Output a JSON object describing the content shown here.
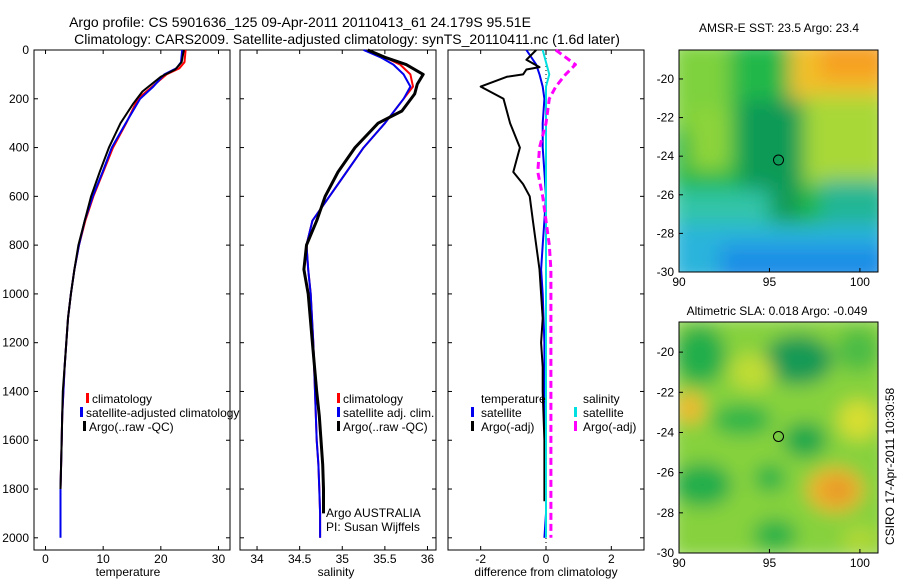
{
  "title": {
    "line1": "Argo profile: CS 5901636_125 09-Apr-2011 20110413_61 24.179S 95.51E",
    "line2": "Climatology: CARS2009. Satellite-adjusted climatology: synTS_20110411.nc (1.6d later)"
  },
  "credit": "CSIRO 17-Apr-2011 10:30:58",
  "colors": {
    "red": "#ff0000",
    "blue": "#0000ee",
    "black": "#000000",
    "cyan": "#00e0e0",
    "magenta": "#ff00ff"
  },
  "chart_data": [
    {
      "id": "temperature",
      "type": "line",
      "xlabel": "temperature",
      "xlim": [
        -2,
        32
      ],
      "ylim": [
        2050,
        0
      ],
      "xticks": [
        0,
        10,
        20,
        30
      ],
      "yticks": [
        0,
        200,
        400,
        600,
        800,
        1000,
        1200,
        1400,
        1600,
        1800,
        2000
      ],
      "legend": [
        "climatology",
        "satellite-adjusted climatology",
        "Argo(..raw -QC)"
      ],
      "series": [
        {
          "name": "climatology",
          "color": "red",
          "width": 2,
          "dash": "",
          "x": [
            24.3,
            24.1,
            23.2,
            21,
            18.5,
            16,
            14,
            11.7,
            10,
            8.3,
            6.9,
            5.8,
            5,
            4.4,
            3.9,
            3.6,
            3.3,
            3.1,
            2.9,
            2.8,
            2.7,
            2.6,
            2.6
          ],
          "y": [
            0,
            50,
            75,
            100,
            150,
            200,
            300,
            400,
            500,
            600,
            700,
            800,
            900,
            1000,
            1100,
            1200,
            1300,
            1400,
            1500,
            1600,
            1700,
            1800,
            1950
          ]
        },
        {
          "name": "satellite-adjusted climatology",
          "color": "blue",
          "width": 2,
          "dash": "",
          "x": [
            23.7,
            23.5,
            22.7,
            20.6,
            18.7,
            16.4,
            13.9,
            11.5,
            9.9,
            8.2,
            6.8,
            5.8,
            5,
            4.4,
            3.9,
            3.6,
            3.3,
            3.1,
            2.9,
            2.8,
            2.7,
            2.6,
            2.6
          ],
          "y": [
            0,
            50,
            75,
            100,
            150,
            200,
            300,
            400,
            500,
            600,
            700,
            800,
            900,
            1000,
            1100,
            1200,
            1300,
            1400,
            1500,
            1600,
            1700,
            1800,
            2000
          ]
        },
        {
          "name": "Argo(..raw -QC)",
          "color": "black",
          "width": 2,
          "dash": "",
          "x": [
            24,
            23.6,
            22.5,
            20,
            16.8,
            15.2,
            13,
            11,
            9.4,
            7.9,
            6.8,
            5.7,
            5,
            4.4,
            3.9,
            3.6,
            3.3,
            3,
            2.9,
            2.8,
            2.7,
            2.6
          ],
          "y": [
            0,
            50,
            80,
            110,
            170,
            220,
            300,
            400,
            500,
            600,
            700,
            800,
            900,
            1000,
            1100,
            1200,
            1300,
            1400,
            1500,
            1600,
            1700,
            1800
          ]
        }
      ]
    },
    {
      "id": "salinity",
      "type": "line",
      "xlabel": "salinity",
      "xlim": [
        33.8,
        36.1
      ],
      "ylim": [
        2050,
        0
      ],
      "xticks": [
        34,
        34.5,
        35,
        35.5,
        36
      ],
      "legend": [
        "climatology",
        "satellite adj. clim.",
        "Argo(..raw -QC)"
      ],
      "annotations": [
        "Argo AUSTRALIA",
        "PI: Susan Wijffels"
      ],
      "series": [
        {
          "name": "climatology",
          "color": "red",
          "width": 2,
          "dash": "",
          "x": [
            35.3,
            35.5,
            35.68,
            35.8,
            35.83,
            35.72,
            35.5,
            35.25,
            35.05,
            34.85,
            34.65,
            34.58,
            34.6,
            34.63,
            34.66,
            34.68,
            34.7,
            34.72,
            34.73,
            34.74,
            34.74
          ],
          "y": [
            0,
            30,
            60,
            100,
            150,
            200,
            300,
            400,
            500,
            600,
            700,
            800,
            900,
            1000,
            1200,
            1400,
            1600,
            1700,
            1800,
            1900,
            2000
          ]
        },
        {
          "name": "satellite adj. clim.",
          "color": "blue",
          "width": 2,
          "dash": "",
          "x": [
            35.25,
            35.45,
            35.6,
            35.72,
            35.8,
            35.72,
            35.5,
            35.25,
            35.05,
            34.85,
            34.65,
            34.58,
            34.6,
            34.63,
            34.66,
            34.68,
            34.7,
            34.72,
            34.73,
            34.74,
            34.74
          ],
          "y": [
            0,
            30,
            60,
            100,
            150,
            200,
            300,
            400,
            500,
            600,
            700,
            800,
            900,
            1000,
            1200,
            1400,
            1600,
            1700,
            1800,
            1900,
            2000
          ]
        },
        {
          "name": "Argo(..raw -QC)",
          "color": "black",
          "width": 3,
          "dash": "",
          "x": [
            35.3,
            35.5,
            35.75,
            35.95,
            35.88,
            35.85,
            35.7,
            35.42,
            35.15,
            34.95,
            34.8,
            34.7,
            34.58,
            34.55,
            34.6,
            34.65,
            34.7,
            34.73,
            34.75,
            34.77,
            34.78,
            34.78
          ],
          "y": [
            0,
            30,
            60,
            100,
            140,
            180,
            250,
            300,
            400,
            500,
            600,
            700,
            800,
            900,
            1000,
            1200,
            1400,
            1500,
            1600,
            1700,
            1800,
            1900
          ]
        }
      ]
    },
    {
      "id": "difference",
      "type": "line",
      "xlabel": "difference from climatology",
      "xlim": [
        -3,
        3
      ],
      "ylim": [
        2050,
        0
      ],
      "xticks": [
        -2,
        0,
        2
      ],
      "legend_temperature": {
        "title": "temperature",
        "items": [
          "satellite",
          "Argo(-adj)"
        ]
      },
      "legend_salinity": {
        "title": "salinity",
        "items": [
          "satellite",
          "Argo(-adj)"
        ]
      },
      "series": [
        {
          "name": "temperature satellite",
          "color": "blue",
          "width": 2,
          "dash": "",
          "x": [
            -0.6,
            -0.3,
            -0.2,
            -0.1,
            -0.05,
            -0.1,
            -0.1,
            -0.05,
            0,
            -0.05,
            -0.1,
            -0.15,
            -0.1,
            -0.05,
            -0.05,
            0,
            0,
            0,
            -0.05
          ],
          "y": [
            0,
            60,
            100,
            150,
            200,
            300,
            400,
            500,
            600,
            700,
            800,
            900,
            1000,
            1200,
            1400,
            1600,
            1800,
            1900,
            2000
          ]
        },
        {
          "name": "temperature Argo(-adj)",
          "color": "black",
          "width": 2,
          "dash": "",
          "x": [
            -0.3,
            -0.6,
            -0.2,
            -0.6,
            -0.7,
            -1.2,
            -2.0,
            -1.3,
            -1.1,
            -0.8,
            -0.9,
            -1.0,
            -0.7,
            -0.5,
            -0.4,
            -0.3,
            -0.2,
            -0.15,
            -0.1,
            -0.15,
            -0.1,
            -0.1,
            -0.05,
            -0.05,
            -0.05
          ],
          "y": [
            0,
            40,
            70,
            80,
            100,
            110,
            150,
            200,
            300,
            400,
            450,
            500,
            550,
            600,
            700,
            800,
            900,
            1000,
            1100,
            1200,
            1300,
            1400,
            1600,
            1800,
            1850
          ]
        },
        {
          "name": "salinity satellite",
          "color": "cyan",
          "width": 2,
          "dash": "",
          "x": [
            -0.1,
            0,
            0.1,
            0,
            0,
            0,
            0,
            0,
            0,
            0,
            0,
            0,
            0,
            0,
            0,
            0,
            0
          ],
          "y": [
            0,
            50,
            100,
            150,
            200,
            300,
            400,
            500,
            600,
            700,
            800,
            900,
            1000,
            1200,
            1400,
            1600,
            2000
          ]
        },
        {
          "name": "salinity Argo(-adj)",
          "color": "magenta",
          "width": 3,
          "dash": "7,4",
          "x": [
            0.3,
            0.9,
            0.6,
            0.3,
            0.1,
            0,
            -0.2,
            -0.25,
            -0.1,
            0,
            0.1,
            0.15,
            0.15,
            0.15,
            0.15,
            0.15,
            0.15,
            0.15
          ],
          "y": [
            0,
            60,
            100,
            150,
            200,
            300,
            400,
            500,
            600,
            700,
            800,
            900,
            1000,
            1200,
            1400,
            1600,
            1800,
            2000
          ]
        }
      ]
    },
    {
      "id": "amsre-sst",
      "type": "heatmap",
      "title": "AMSR-E SST: 23.5 Argo: 23.4",
      "xlim": [
        90,
        101
      ],
      "ylim": [
        -30,
        -18.5
      ],
      "xticks": [
        90,
        95,
        100
      ],
      "yticks": [
        -20,
        -22,
        -24,
        -26,
        -28,
        -30
      ],
      "marker": {
        "x": 95.5,
        "y": -24.2
      }
    },
    {
      "id": "altimetric-sla",
      "type": "heatmap",
      "title": "Altimetric SLA: 0.018 Argo: -0.049",
      "xlim": [
        90,
        101
      ],
      "ylim": [
        -30,
        -18.5
      ],
      "xticks": [
        90,
        95,
        100
      ],
      "yticks": [
        -20,
        -22,
        -24,
        -26,
        -28,
        -30
      ],
      "marker": {
        "x": 95.5,
        "y": -24.2
      }
    }
  ]
}
